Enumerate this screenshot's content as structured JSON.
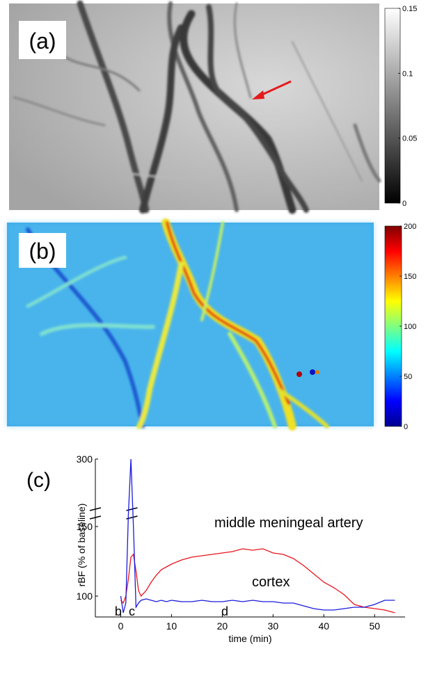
{
  "chart_data": [
    {
      "type": "image",
      "label": "(a)",
      "colormap": "gray",
      "colorbar": {
        "ylim": [
          0,
          0.15
        ],
        "yticks": [
          0,
          0.05,
          0.1,
          0.15
        ]
      }
    },
    {
      "type": "image",
      "label": "(b)",
      "colormap": "jet",
      "colorbar": {
        "ylim": [
          0,
          200
        ],
        "yticks": [
          0,
          50,
          100,
          150,
          200
        ]
      }
    },
    {
      "type": "line",
      "label": "(c)",
      "xlabel": "time (min)",
      "ylabel": "rBF (% of baseline)",
      "xlim": [
        -5,
        56
      ],
      "xticks": [
        0,
        10,
        20,
        30,
        40,
        50
      ],
      "ylim": [
        85,
        300
      ],
      "ybreak": [
        158,
        235
      ],
      "yticks": [
        100,
        150,
        300
      ],
      "x": [
        0,
        0.5,
        1,
        1.5,
        2,
        2.5,
        3,
        3.5,
        4,
        5,
        6,
        7,
        8,
        9,
        10,
        12,
        14,
        16,
        18,
        20,
        22,
        24,
        26,
        28,
        30,
        32,
        34,
        36,
        38,
        40,
        42,
        44,
        46,
        48,
        50,
        52,
        54
      ],
      "series": [
        {
          "name": "middle meningeal artery",
          "color": "#e8141e",
          "values": [
            97,
            95,
            100,
            112,
            128,
            130,
            118,
            104,
            100,
            104,
            110,
            115,
            119,
            121,
            123,
            126,
            128,
            129,
            130,
            131,
            132,
            134,
            133,
            134,
            131,
            130,
            127,
            122,
            116,
            110,
            106,
            101,
            94,
            92,
            91,
            90,
            88
          ]
        },
        {
          "name": "cortex",
          "color": "#1a1adc",
          "values": [
            100,
            88,
            95,
            160,
            300,
            150,
            92,
            95,
            97,
            98,
            97,
            96,
            97,
            96,
            97,
            96,
            96,
            97,
            96,
            96,
            97,
            96,
            97,
            96,
            96,
            95,
            95,
            93,
            91,
            90,
            90,
            91,
            92,
            92,
            94,
            97,
            97
          ]
        }
      ],
      "annotations": [
        {
          "text": "b",
          "x": -0.5
        },
        {
          "text": "c",
          "x": 2.2
        },
        {
          "text": "d",
          "x": 20.5
        }
      ]
    }
  ]
}
